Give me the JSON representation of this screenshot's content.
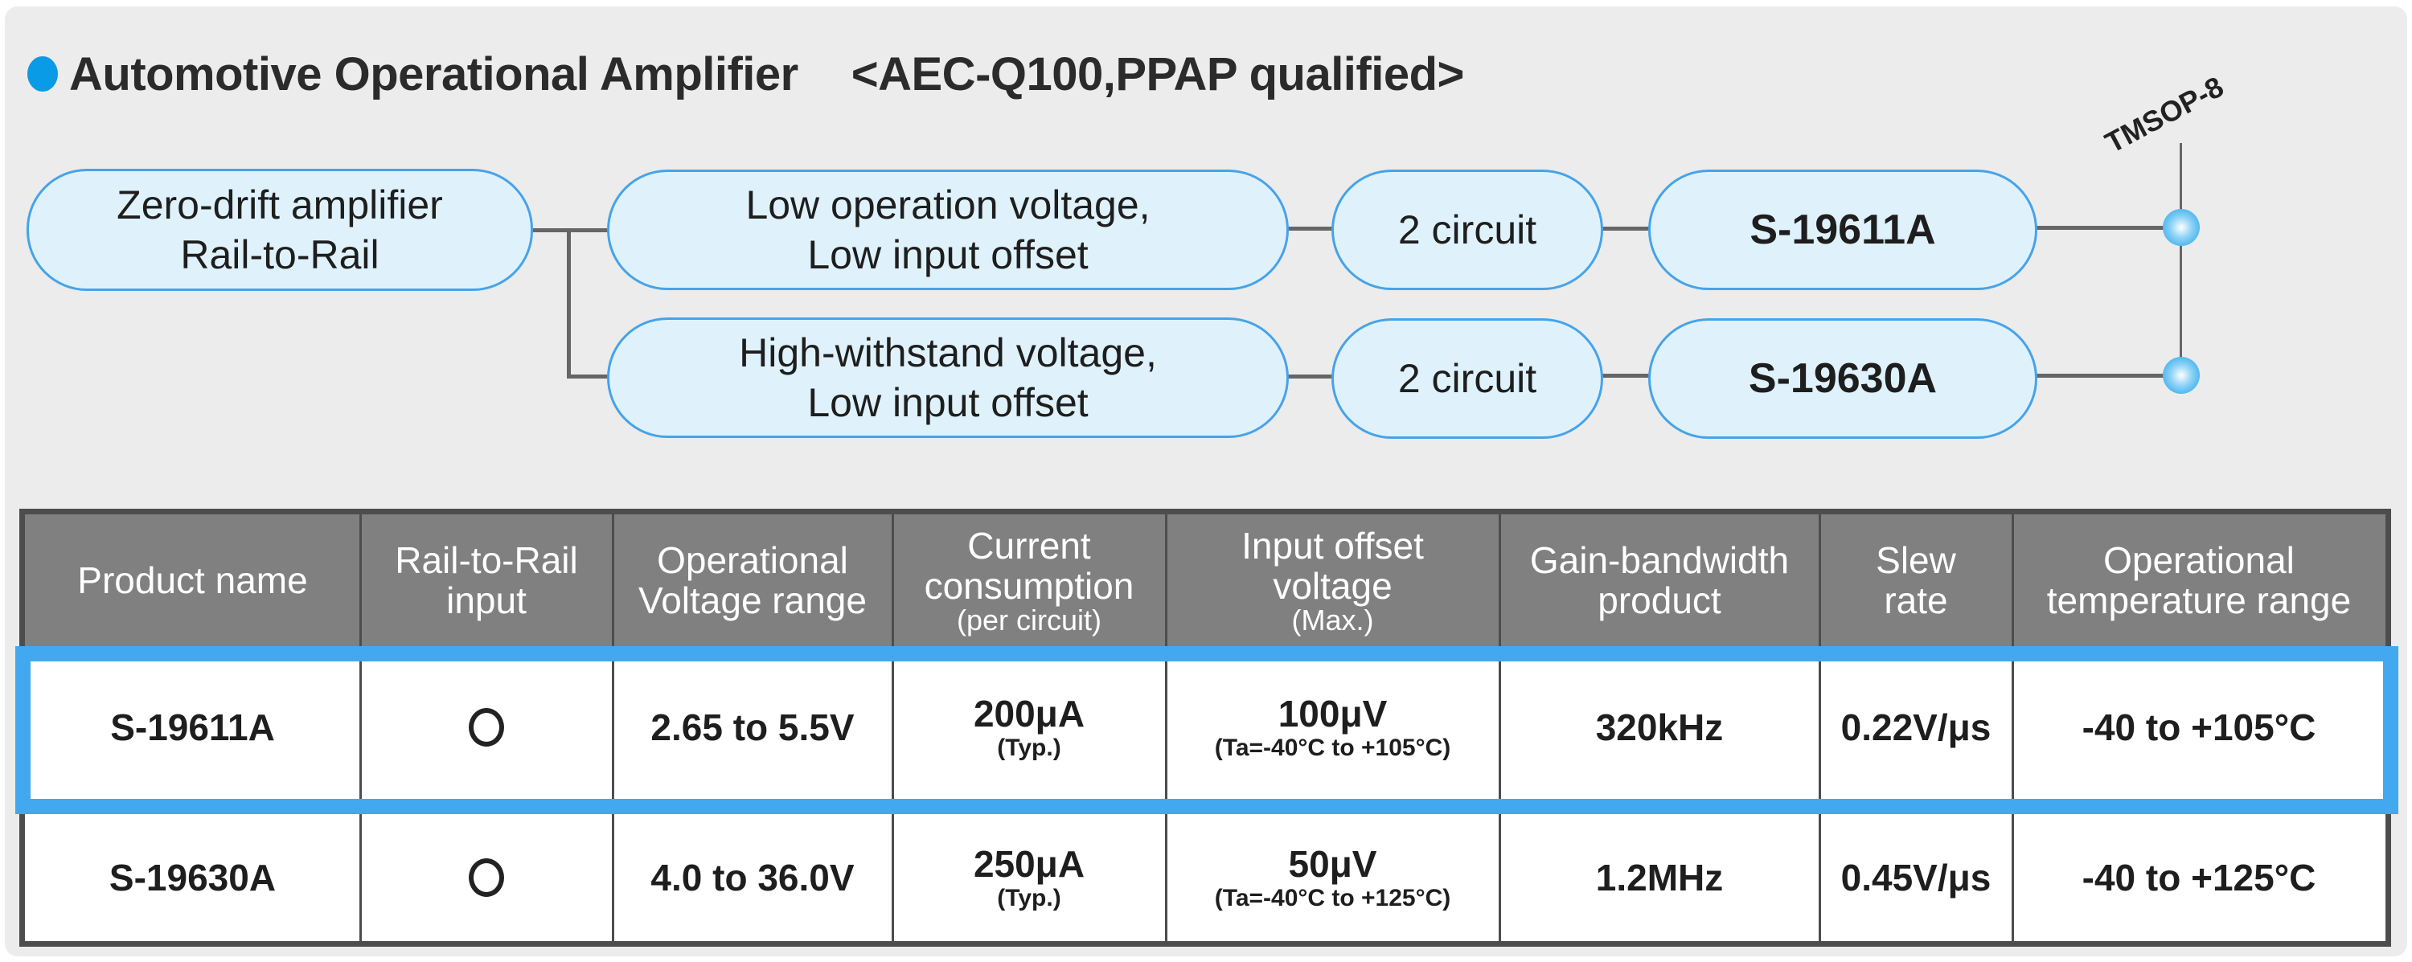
{
  "title": {
    "main": "Automotive Operational Amplifier",
    "qualification": "<AEC-Q100,PPAP qualified>",
    "bullet_color": "#0a9be6"
  },
  "diagram": {
    "root": [
      "Zero-drift amplifier",
      "Rail-to-Rail"
    ],
    "package": "TMSOP-8",
    "branches": [
      {
        "feature": [
          "Low operation voltage,",
          "Low input offset"
        ],
        "circuit": "2 circuit",
        "product": "S-19611A"
      },
      {
        "feature": [
          "High-withstand voltage,",
          "Low input offset"
        ],
        "circuit": "2 circuit",
        "product": "S-19630A"
      }
    ]
  },
  "table": {
    "headers": [
      {
        "l1": "Product name"
      },
      {
        "l1": "Rail-to-Rail",
        "l2": "input"
      },
      {
        "l1": "Operational",
        "l2": "Voltage range"
      },
      {
        "l1": "Current",
        "l2": "consumption",
        "note": "(per circuit)"
      },
      {
        "l1": "Input offset",
        "l2": "voltage",
        "note": "(Max.)"
      },
      {
        "l1": "Gain-bandwidth",
        "l2": "product"
      },
      {
        "l1": "Slew",
        "l2": "rate"
      },
      {
        "l1": "Operational",
        "l2": "temperature range"
      }
    ],
    "rows": [
      {
        "product": "S-19611A",
        "rail": "circle",
        "voltage": "2.65 to 5.5V",
        "current": "200μA",
        "current_note": "(Typ.)",
        "offset": "100μV",
        "offset_note": "(Ta=-40°C to +105°C)",
        "gbw": "320kHz",
        "slew": "0.22V/μs",
        "temp": "-40 to +105°C",
        "highlighted": true
      },
      {
        "product": "S-19630A",
        "rail": "circle",
        "voltage": "4.0 to 36.0V",
        "current": "250μA",
        "current_note": "(Typ.)",
        "offset": "50μV",
        "offset_note": "(Ta=-40°C to +125°C)",
        "gbw": "1.2MHz",
        "slew": "0.45V/μs",
        "temp": "-40 to +125°C",
        "highlighted": false
      }
    ],
    "highlight_color": "#42a8f0",
    "header_bg": "#808080"
  }
}
